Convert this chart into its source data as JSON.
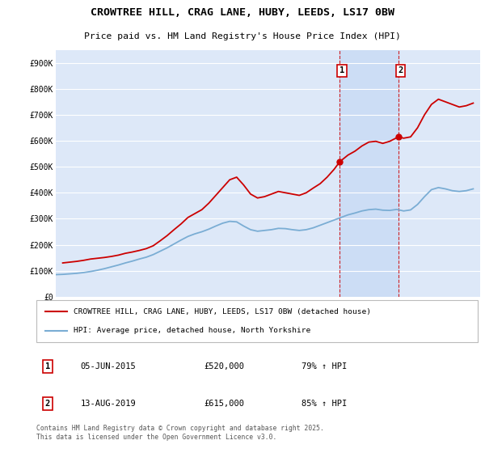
{
  "title1": "CROWTREE HILL, CRAG LANE, HUBY, LEEDS, LS17 0BW",
  "title2": "Price paid vs. HM Land Registry's House Price Index (HPI)",
  "ylim": [
    0,
    950000
  ],
  "yticks": [
    0,
    100000,
    200000,
    300000,
    400000,
    500000,
    600000,
    700000,
    800000,
    900000
  ],
  "ytick_labels": [
    "£0",
    "£100K",
    "£200K",
    "£300K",
    "£400K",
    "£500K",
    "£600K",
    "£700K",
    "£800K",
    "£900K"
  ],
  "background_color": "#ffffff",
  "plot_background": "#dde8f8",
  "grid_color": "#ffffff",
  "red_line_color": "#cc0000",
  "blue_line_color": "#7aadd4",
  "marker1_x": 2015.42,
  "marker1_y": 520000,
  "marker2_x": 2019.62,
  "marker2_y": 615000,
  "marker1_label": "1",
  "marker2_label": "2",
  "legend_red": "CROWTREE HILL, CRAG LANE, HUBY, LEEDS, LS17 0BW (detached house)",
  "legend_blue": "HPI: Average price, detached house, North Yorkshire",
  "ann1_num": "1",
  "ann1_date": "05-JUN-2015",
  "ann1_price": "£520,000",
  "ann1_hpi": "79% ↑ HPI",
  "ann2_num": "2",
  "ann2_date": "13-AUG-2019",
  "ann2_price": "£615,000",
  "ann2_hpi": "85% ↑ HPI",
  "footer": "Contains HM Land Registry data © Crown copyright and database right 2025.\nThis data is licensed under the Open Government Licence v3.0.",
  "red_x": [
    1995.5,
    1996.0,
    1996.5,
    1997.0,
    1997.5,
    1998.0,
    1998.5,
    1999.0,
    1999.5,
    2000.0,
    2000.5,
    2001.0,
    2001.5,
    2002.0,
    2002.5,
    2003.0,
    2003.5,
    2004.0,
    2004.5,
    2005.0,
    2005.5,
    2006.0,
    2006.5,
    2007.0,
    2007.5,
    2008.0,
    2008.5,
    2009.0,
    2009.5,
    2010.0,
    2010.5,
    2011.0,
    2011.5,
    2012.0,
    2012.5,
    2013.0,
    2013.5,
    2014.0,
    2014.5,
    2015.0,
    2015.42,
    2016.0,
    2016.5,
    2017.0,
    2017.5,
    2018.0,
    2018.5,
    2019.0,
    2019.62,
    2020.0,
    2020.5,
    2021.0,
    2021.5,
    2022.0,
    2022.5,
    2023.0,
    2023.5,
    2024.0,
    2024.5,
    2025.0
  ],
  "red_y": [
    130000,
    133000,
    136000,
    140000,
    145000,
    148000,
    151000,
    155000,
    160000,
    167000,
    172000,
    178000,
    185000,
    196000,
    215000,
    235000,
    258000,
    280000,
    305000,
    320000,
    335000,
    360000,
    390000,
    420000,
    450000,
    460000,
    430000,
    395000,
    380000,
    385000,
    395000,
    405000,
    400000,
    395000,
    390000,
    400000,
    418000,
    435000,
    460000,
    490000,
    520000,
    545000,
    560000,
    580000,
    595000,
    598000,
    590000,
    598000,
    615000,
    610000,
    615000,
    650000,
    700000,
    740000,
    760000,
    750000,
    740000,
    730000,
    735000,
    745000
  ],
  "blue_x": [
    1995.0,
    1995.5,
    1996.0,
    1996.5,
    1997.0,
    1997.5,
    1998.0,
    1998.5,
    1999.0,
    1999.5,
    2000.0,
    2000.5,
    2001.0,
    2001.5,
    2002.0,
    2002.5,
    2003.0,
    2003.5,
    2004.0,
    2004.5,
    2005.0,
    2005.5,
    2006.0,
    2006.5,
    2007.0,
    2007.5,
    2008.0,
    2008.5,
    2009.0,
    2009.5,
    2010.0,
    2010.5,
    2011.0,
    2011.5,
    2012.0,
    2012.5,
    2013.0,
    2013.5,
    2014.0,
    2014.5,
    2015.0,
    2015.5,
    2016.0,
    2016.5,
    2017.0,
    2017.5,
    2018.0,
    2018.5,
    2019.0,
    2019.5,
    2020.0,
    2020.5,
    2021.0,
    2021.5,
    2022.0,
    2022.5,
    2023.0,
    2023.5,
    2024.0,
    2024.5,
    2025.0
  ],
  "blue_y": [
    85000,
    86000,
    88000,
    90000,
    93000,
    97000,
    102000,
    108000,
    115000,
    122000,
    130000,
    137000,
    145000,
    152000,
    162000,
    175000,
    188000,
    203000,
    218000,
    232000,
    242000,
    250000,
    260000,
    272000,
    283000,
    290000,
    288000,
    272000,
    258000,
    252000,
    255000,
    258000,
    263000,
    262000,
    258000,
    255000,
    258000,
    265000,
    275000,
    285000,
    295000,
    305000,
    315000,
    322000,
    330000,
    335000,
    337000,
    333000,
    332000,
    336000,
    330000,
    334000,
    355000,
    385000,
    412000,
    420000,
    415000,
    408000,
    405000,
    408000,
    415000
  ],
  "xmin": 1995,
  "xmax": 2025.5,
  "span_color": "#ccddf5",
  "vline_color": "#cc0000",
  "border_color": "#bbbbbb"
}
